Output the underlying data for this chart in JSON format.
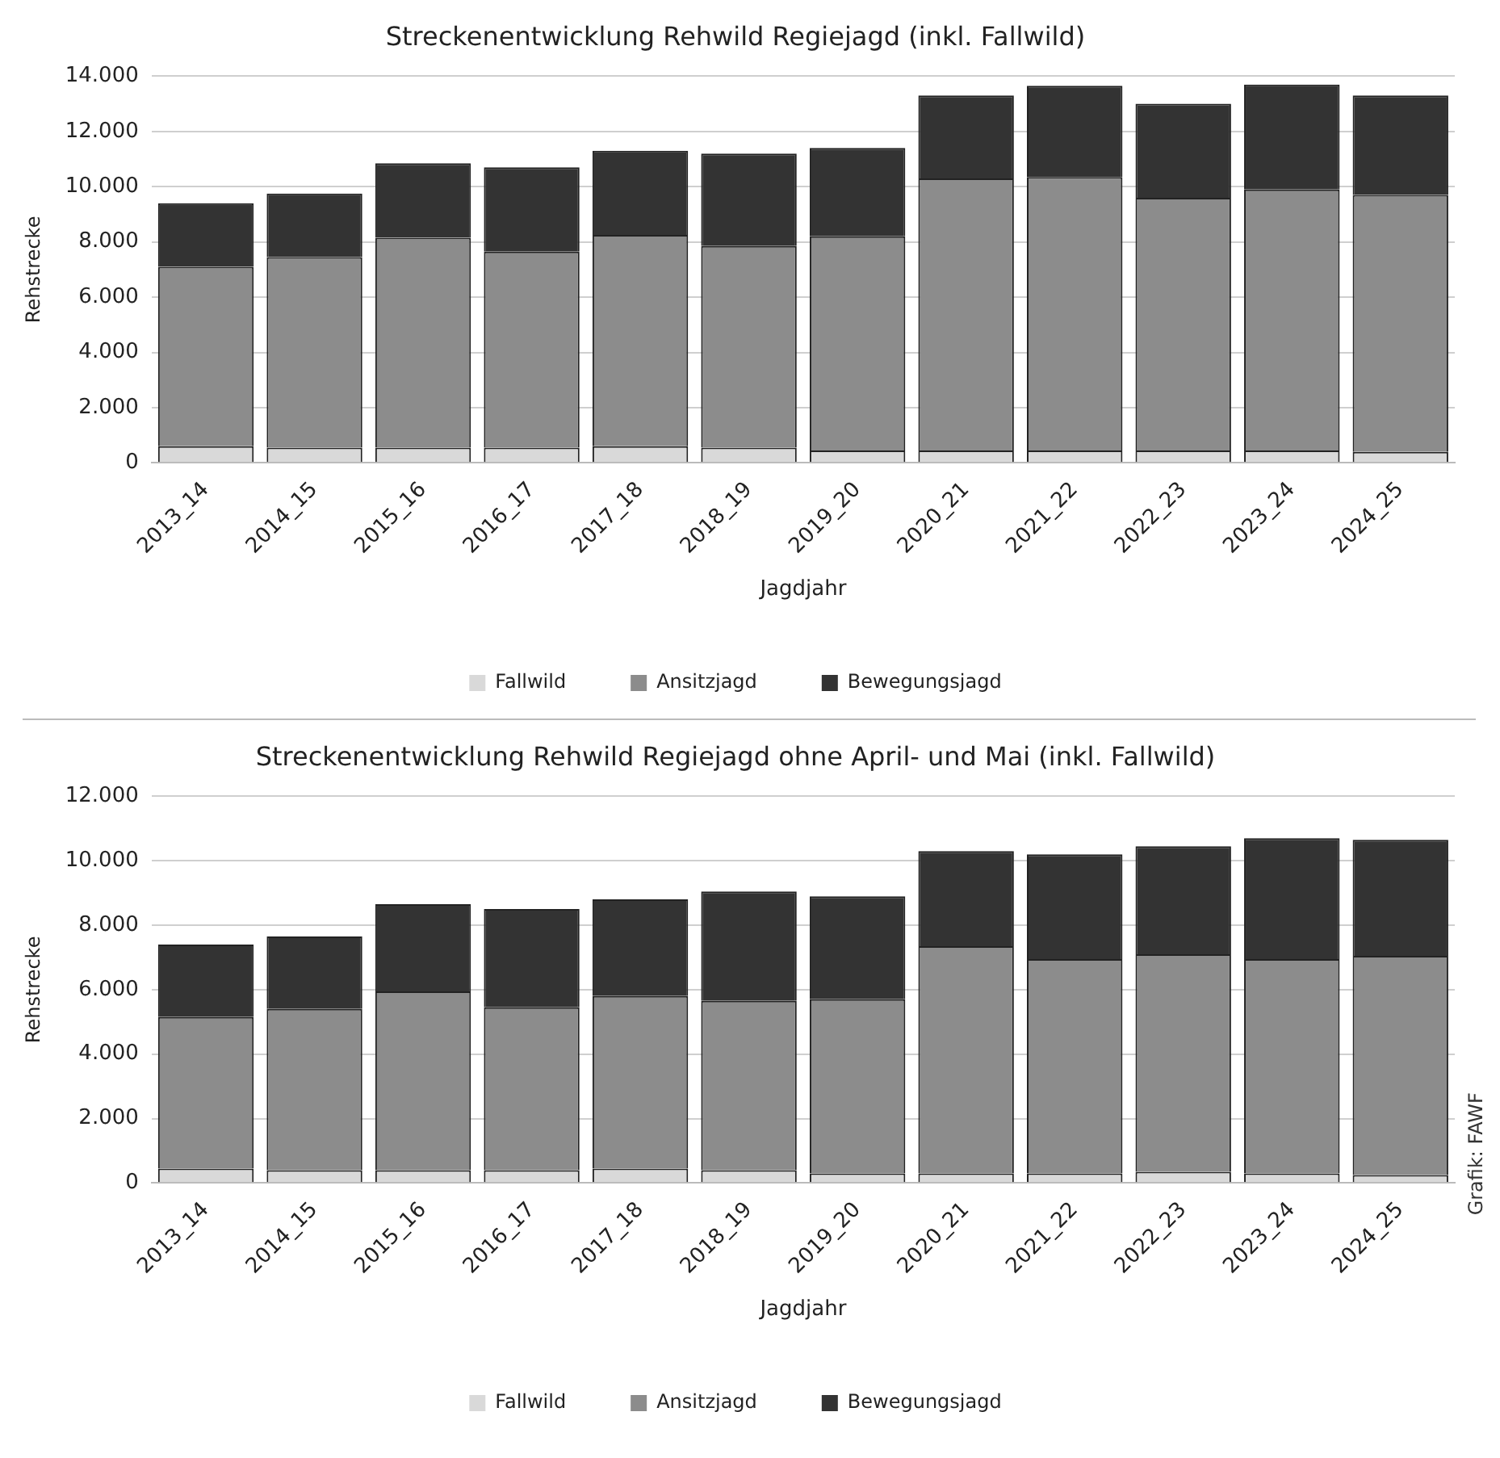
{
  "chart_data": [
    {
      "type": "bar",
      "title": "Streckenentwicklung Rehwild Regiejagd (inkl. Fallwild)",
      "xlabel": "Jagdjahr",
      "ylabel": "Rehstrecke",
      "categories": [
        "2013_14",
        "2014_15",
        "2015_16",
        "2016_17",
        "2017_18",
        "2018_19",
        "2019_20",
        "2020_21",
        "2021_22",
        "2022_23",
        "2023_24",
        "2024_25"
      ],
      "stacked": true,
      "series": [
        {
          "name": "Fallwild",
          "color": "#d9d9d9",
          "values": [
            600,
            550,
            550,
            550,
            600,
            550,
            450,
            450,
            450,
            450,
            450,
            400
          ]
        },
        {
          "name": "Ansitzjagd",
          "color": "#8c8c8c",
          "values": [
            6500,
            6900,
            7600,
            7100,
            7650,
            7300,
            7750,
            9850,
            9900,
            9150,
            9450,
            9300
          ]
        },
        {
          "name": "Bewegungsjagd",
          "color": "#333333",
          "values": [
            2300,
            2300,
            2700,
            3050,
            3050,
            3350,
            3200,
            3000,
            3300,
            3400,
            3800,
            3600
          ]
        }
      ],
      "ylim": [
        0,
        14000
      ],
      "yticks": [
        {
          "value": 0,
          "label": "0"
        },
        {
          "value": 2000,
          "label": "2.000"
        },
        {
          "value": 4000,
          "label": "4.000"
        },
        {
          "value": 6000,
          "label": "6.000"
        },
        {
          "value": 8000,
          "label": "8.000"
        },
        {
          "value": 10000,
          "label": "10.000"
        },
        {
          "value": 12000,
          "label": "12.000"
        },
        {
          "value": 14000,
          "label": "14.000"
        }
      ],
      "grid": "y",
      "legend": "bottom"
    },
    {
      "type": "bar",
      "title": "Streckenentwicklung Rehwild Regiejagd ohne April- und Mai (inkl. Fallwild)",
      "xlabel": "Jagdjahr",
      "ylabel": "Rehstrecke",
      "categories": [
        "2013_14",
        "2014_15",
        "2015_16",
        "2016_17",
        "2017_18",
        "2018_19",
        "2019_20",
        "2020_21",
        "2021_22",
        "2022_23",
        "2023_24",
        "2024_25"
      ],
      "stacked": true,
      "series": [
        {
          "name": "Fallwild",
          "color": "#d9d9d9",
          "values": [
            450,
            400,
            400,
            400,
            450,
            400,
            300,
            300,
            300,
            350,
            300,
            250
          ]
        },
        {
          "name": "Ansitzjagd",
          "color": "#8c8c8c",
          "values": [
            4700,
            5000,
            5550,
            5050,
            5350,
            5250,
            5400,
            7050,
            6650,
            6750,
            6650,
            6800
          ]
        },
        {
          "name": "Bewegungsjagd",
          "color": "#333333",
          "values": [
            2250,
            2250,
            2700,
            3050,
            3000,
            3400,
            3200,
            2950,
            3250,
            3350,
            3750,
            3600
          ]
        }
      ],
      "ylim": [
        0,
        12000
      ],
      "yticks": [
        {
          "value": 0,
          "label": "0"
        },
        {
          "value": 2000,
          "label": "2.000"
        },
        {
          "value": 4000,
          "label": "4.000"
        },
        {
          "value": 6000,
          "label": "6.000"
        },
        {
          "value": 8000,
          "label": "8.000"
        },
        {
          "value": 10000,
          "label": "10.000"
        },
        {
          "value": 12000,
          "label": "12.000"
        }
      ],
      "grid": "y",
      "legend": "bottom",
      "annotations": [
        "Grafik: FAWF"
      ]
    }
  ]
}
